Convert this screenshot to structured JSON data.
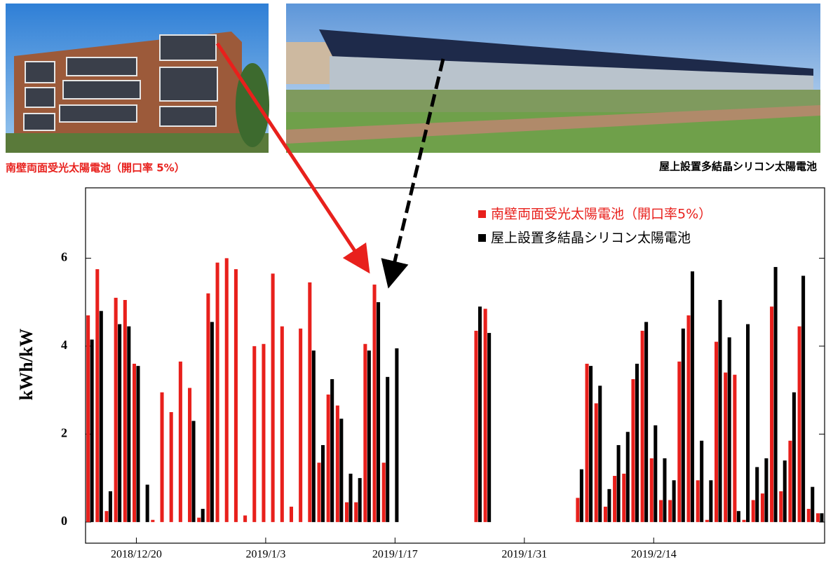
{
  "photos": {
    "left_caption": "南壁両面受光太陽電池（開口率 5%）",
    "right_caption": "屋上設置多結晶シリコン太陽電池"
  },
  "chart_data": {
    "type": "bar",
    "y_label": "kWh/kW",
    "categories": [
      null,
      null,
      null,
      null,
      null,
      "2018/12/20",
      null,
      null,
      null,
      null,
      null,
      null,
      null,
      null,
      null,
      null,
      null,
      null,
      null,
      "2019/1/3",
      null,
      null,
      null,
      null,
      null,
      null,
      null,
      null,
      null,
      null,
      null,
      null,
      null,
      "2019/1/17",
      null,
      null,
      null,
      null,
      null,
      null,
      null,
      null,
      null,
      null,
      null,
      null,
      null,
      "2019/1/31",
      null,
      null,
      null,
      null,
      null,
      null,
      null,
      null,
      null,
      null,
      null,
      null,
      null,
      "2019/2/14",
      null,
      null,
      null,
      null,
      null,
      null,
      null,
      null,
      null,
      null,
      null,
      null,
      null,
      null,
      null,
      null,
      null,
      null
    ],
    "series": [
      {
        "name": "南壁両面受光太陽電池（開口率5%）",
        "color": "#e8201c",
        "values": [
          4.7,
          5.75,
          0.25,
          5.1,
          5.05,
          3.6,
          null,
          0.05,
          2.95,
          2.5,
          3.65,
          3.05,
          0.1,
          5.2,
          5.9,
          6.0,
          5.75,
          0.15,
          4.0,
          4.05,
          5.65,
          4.45,
          0.35,
          4.4,
          5.45,
          1.35,
          2.9,
          2.65,
          0.45,
          0.45,
          4.05,
          5.4,
          1.35,
          null,
          null,
          null,
          null,
          null,
          null,
          null,
          null,
          null,
          4.35,
          4.85,
          null,
          null,
          null,
          null,
          null,
          null,
          null,
          null,
          null,
          0.55,
          3.6,
          2.7,
          0.35,
          1.05,
          1.1,
          3.25,
          4.35,
          1.45,
          0.5,
          0.5,
          3.65,
          4.7,
          0.95,
          0.05,
          4.1,
          3.4,
          3.35,
          0.05,
          0.5,
          0.65,
          4.9,
          0.7,
          1.85,
          4.45,
          0.3,
          0.2
        ]
      },
      {
        "name": "屋上設置多結晶シリコン太陽電池",
        "color": "#000000",
        "values": [
          4.15,
          4.8,
          0.7,
          4.5,
          4.45,
          3.55,
          0.85,
          null,
          null,
          null,
          null,
          2.3,
          0.3,
          4.55,
          null,
          null,
          null,
          null,
          null,
          null,
          null,
          null,
          null,
          null,
          3.9,
          1.75,
          3.25,
          2.35,
          1.1,
          1.0,
          3.9,
          5.0,
          3.3,
          3.95,
          null,
          null,
          null,
          null,
          null,
          null,
          null,
          null,
          4.9,
          4.3,
          null,
          null,
          null,
          null,
          null,
          null,
          null,
          null,
          null,
          1.2,
          3.55,
          3.1,
          0.75,
          1.75,
          2.05,
          3.6,
          4.55,
          2.2,
          1.45,
          0.95,
          4.4,
          5.7,
          1.85,
          0.95,
          5.05,
          4.2,
          0.25,
          4.5,
          1.25,
          1.45,
          5.8,
          1.4,
          2.95,
          5.6,
          0.8,
          0.2
        ]
      }
    ],
    "ylim": [
      -0.48,
      7.6
    ],
    "yticks": [
      0,
      2,
      4,
      6
    ],
    "legend": "upper right"
  }
}
